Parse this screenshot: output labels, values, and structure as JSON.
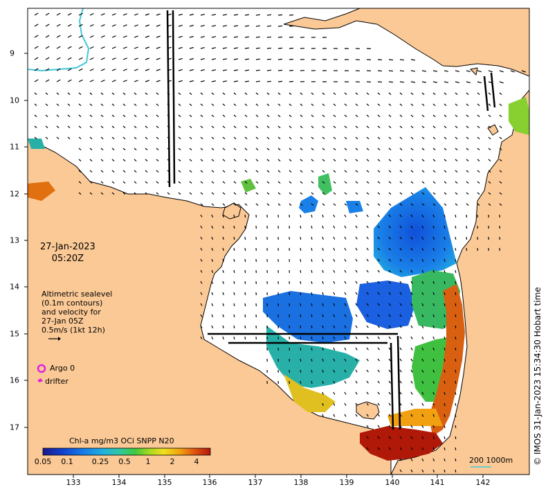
{
  "map": {
    "date": "27-Jan-2023",
    "time": "05:20Z",
    "legend_lines": [
      "Altimetric sealevel",
      "(0.1m contours)",
      "and velocity for",
      "27-Jan 05Z",
      "0.5m/s (1kt 12h)"
    ],
    "argo_label": "Argo 0",
    "drifter_label": "drifter",
    "credit": "© IMOS 31-Jan-2023 15:34:30 Hobart time",
    "colorbar_title": "Chl-a mg/m3 OCi SNPP N20",
    "colorbar_ticks": [
      "0.05",
      "0.1",
      "0.25",
      "0.5",
      "1",
      "2",
      "4"
    ],
    "x_ticks": [
      "133",
      "134",
      "135",
      "136",
      "137",
      "138",
      "139",
      "140",
      "141",
      "142"
    ],
    "y_ticks": [
      "9",
      "10",
      "11",
      "12",
      "13",
      "14",
      "15",
      "16",
      "17"
    ],
    "scale_bar_label": "200  1000m",
    "colors": {
      "land": "#fbc996",
      "ocean": "#ffffff",
      "argo": "#e020e0",
      "drifter": "#e020e0",
      "depth_contour": "#40c8d8"
    },
    "colorbar_colors": [
      "#1a1a8c",
      "#1040d0",
      "#1880e8",
      "#20b0e0",
      "#30c8a0",
      "#40c840",
      "#a0d820",
      "#f0e020",
      "#f0a010",
      "#e05010",
      "#b01808"
    ]
  }
}
